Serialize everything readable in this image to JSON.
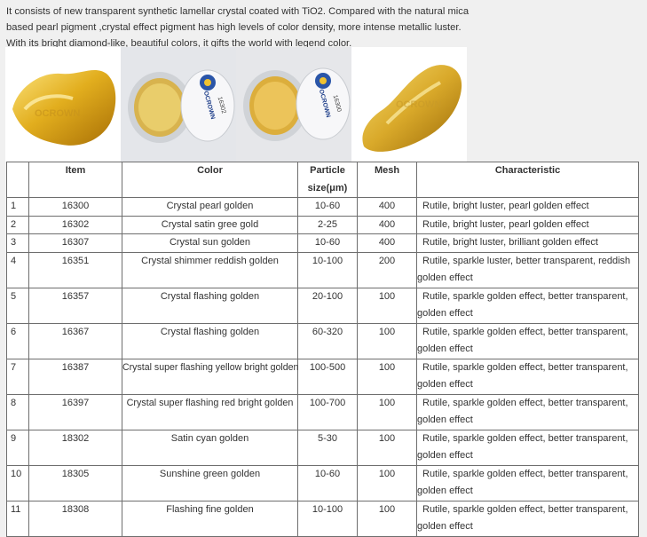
{
  "intro": "It consists of new transparent synthetic lamellar crystal coated with TiO2. Compared with the natural mica based pearl pigment ,crystal effect pigment has high levels of color density, more intense metallic luster. With its bright diamond-like, beautiful colors, it gifts the world with legend color.",
  "photos": {
    "watermark": "OCROWN",
    "jar_brand": "OCROWN",
    "jar_1_code": "16302",
    "jar_2_code": "16300"
  },
  "table": {
    "headers": [
      "",
      "Item",
      "Color",
      "Particle size(μm)",
      "Mesh",
      "Characteristic"
    ],
    "rows": [
      {
        "no": "1",
        "item": "16300",
        "color": "Crystal pearl golden",
        "size": "10-60",
        "mesh": "400",
        "characteristic": "Rutile, bright luster, pearl golden effect"
      },
      {
        "no": "2",
        "item": "16302",
        "color": "Crystal satin gree gold",
        "size": "2-25",
        "mesh": "400",
        "characteristic": "Rutile, bright luster, pearl golden effect"
      },
      {
        "no": "3",
        "item": "16307",
        "color": "Crystal sun golden",
        "size": "10-60",
        "mesh": "400",
        "characteristic": "Rutile, bright luster, brilliant golden effect"
      },
      {
        "no": "4",
        "item": "16351",
        "color": "Crystal shimmer reddish golden",
        "size": "10-100",
        "mesh": "200",
        "characteristic": "Rutile, sparkle luster, better transparent, reddish golden effect"
      },
      {
        "no": "5",
        "item": "16357",
        "color": "Crystal flashing golden",
        "size": "20-100",
        "mesh": "100",
        "characteristic": "Rutile, sparkle golden effect, better transparent, golden effect"
      },
      {
        "no": "6",
        "item": "16367",
        "color": "Crystal flashing golden",
        "size": "60-320",
        "mesh": "100",
        "characteristic": "Rutile, sparkle golden effect, better transparent, golden effect"
      },
      {
        "no": "7",
        "item": "16387",
        "color": "Crystal super flashing yellow bright golden",
        "size": "100-500",
        "mesh": "100",
        "characteristic": "Rutile, sparkle golden effect, better transparent, golden effect"
      },
      {
        "no": "8",
        "item": "16397",
        "color": "Crystal super flashing red bright golden",
        "size": "100-700",
        "mesh": "100",
        "characteristic": "Rutile, sparkle golden effect, better transparent, golden effect"
      },
      {
        "no": "9",
        "item": "18302",
        "color": "Satin cyan golden",
        "size": "5-30",
        "mesh": "100",
        "characteristic": "Rutile, sparkle golden effect, better transparent, golden effect"
      },
      {
        "no": "10",
        "item": "18305",
        "color": "Sunshine green golden",
        "size": "10-60",
        "mesh": "100",
        "characteristic": "Rutile, sparkle golden effect, better transparent, golden effect"
      },
      {
        "no": "11",
        "item": "18308",
        "color": "Flashing fine golden",
        "size": "10-100",
        "mesh": "100",
        "characteristic": "Rutile, sparkle golden effect, better transparent, golden effect"
      }
    ]
  },
  "colors": {
    "gold": "#d9a92a",
    "border": "#6e6e6e",
    "page_bg": "#f0f0f0"
  }
}
